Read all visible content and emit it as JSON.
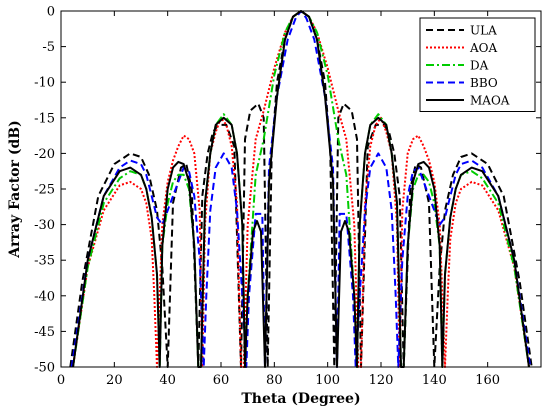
{
  "chart_data": {
    "type": "line",
    "xlabel": "Theta (Degree)",
    "ylabel": "Array Factor (dB)",
    "xlim": [
      0,
      180
    ],
    "ylim": [
      -50,
      0
    ],
    "xticks": [
      0,
      20,
      40,
      60,
      80,
      100,
      120,
      140,
      160
    ],
    "yticks": [
      0,
      -5,
      -10,
      -15,
      -20,
      -25,
      -30,
      -35,
      -40,
      -45,
      -50
    ],
    "grid": false,
    "legend_position": "top-right",
    "series": [
      {
        "name": "ULA",
        "color": "#000000",
        "dash": "7,4",
        "width": 2,
        "x": [
          3.5,
          8,
          14,
          20,
          26,
          30,
          33,
          36,
          38,
          40,
          42,
          45,
          47,
          49,
          51.5,
          53,
          55,
          57,
          59,
          62,
          65,
          67.5,
          69,
          71,
          74,
          76,
          77.5,
          79,
          81,
          84,
          87,
          90,
          93,
          96,
          99,
          101,
          102.5,
          104,
          106,
          109,
          111,
          112.5,
          115,
          118,
          121,
          123,
          125,
          127,
          128.5,
          131,
          133,
          135,
          138,
          140,
          142,
          144,
          147,
          150,
          154,
          160,
          166,
          172,
          176.5
        ],
        "y": [
          -50,
          -38,
          -26,
          -21.5,
          -20,
          -20.5,
          -23,
          -28,
          -36,
          -50,
          -27,
          -22,
          -21.5,
          -25,
          -50,
          -26,
          -20,
          -17,
          -16,
          -16,
          -19,
          -50,
          -18,
          -14,
          -13,
          -15,
          -50,
          -20,
          -10,
          -4,
          -0.8,
          0,
          -0.8,
          -4,
          -10,
          -20,
          -50,
          -15,
          -13,
          -14,
          -18,
          -50,
          -19,
          -16,
          -16,
          -17,
          -20,
          -26,
          -50,
          -25,
          -21.5,
          -22,
          -27,
          -50,
          -36,
          -28,
          -23,
          -20.5,
          -20,
          -21.5,
          -26,
          -38,
          -50
        ]
      },
      {
        "name": "AOA",
        "color": "#ff0000",
        "dash": "2,2",
        "width": 2,
        "x": [
          4.5,
          10,
          16,
          22,
          26,
          30,
          32,
          34,
          35,
          36,
          38,
          40,
          42,
          44,
          46,
          48,
          50,
          52,
          53,
          54,
          56,
          58,
          60,
          62,
          64,
          66,
          67.5,
          68.5,
          70,
          73,
          76,
          80,
          84,
          87,
          90,
          93,
          96,
          100,
          104,
          107,
          110,
          111.5,
          112.5,
          114,
          116,
          118,
          120,
          122,
          124,
          126,
          127,
          128,
          130,
          132,
          134,
          136,
          138,
          140,
          142,
          144,
          145,
          146,
          148,
          150,
          154,
          158,
          164,
          170,
          175.5
        ],
        "y": [
          -50,
          -36,
          -28,
          -24.5,
          -24,
          -25,
          -27,
          -32,
          -40,
          -50,
          -30,
          -24,
          -21,
          -19,
          -17.5,
          -18,
          -20,
          -28,
          -50,
          -30,
          -20,
          -17,
          -15,
          -16,
          -19,
          -27,
          -50,
          -50,
          -30,
          -18,
          -14,
          -8,
          -3,
          -0.8,
          0,
          -0.8,
          -3,
          -8,
          -14,
          -18,
          -30,
          -50,
          -50,
          -27,
          -19,
          -16,
          -15,
          -17,
          -20,
          -30,
          -50,
          -28,
          -20,
          -18,
          -17.5,
          -19,
          -21,
          -24,
          -30,
          -50,
          -40,
          -32,
          -27,
          -25,
          -24,
          -24.5,
          -28,
          -36,
          -50
        ]
      },
      {
        "name": "DA",
        "color": "#00cc00",
        "dash": "8,3,2,3",
        "width": 2,
        "x": [
          4.5,
          10,
          16,
          22,
          26,
          30,
          32,
          34,
          36,
          37,
          38,
          40,
          42,
          44,
          46,
          48,
          50,
          51.5,
          52.5,
          54,
          56,
          58,
          61,
          64,
          66,
          68,
          69,
          70,
          73,
          76,
          80,
          84,
          87,
          90,
          93,
          96,
          100,
          104,
          107,
          110,
          111,
          112,
          114,
          116,
          119,
          122,
          124,
          126,
          127.5,
          128.5,
          130,
          132,
          134,
          136,
          138,
          140,
          142,
          143,
          144,
          146,
          148,
          150,
          154,
          158,
          164,
          170,
          175.5
        ],
        "y": [
          -50,
          -36,
          -27,
          -23.5,
          -22.5,
          -23,
          -25,
          -29,
          -37,
          -50,
          -33,
          -27,
          -24,
          -23,
          -23,
          -25,
          -33,
          -50,
          -50,
          -27,
          -20,
          -16,
          -14.5,
          -16,
          -20,
          -30,
          -50,
          -40,
          -23,
          -18,
          -9,
          -3,
          -0.8,
          0,
          -0.8,
          -3,
          -9,
          -18,
          -23,
          -40,
          -50,
          -30,
          -20,
          -16,
          -14.5,
          -16,
          -20,
          -27,
          -50,
          -50,
          -33,
          -25,
          -23,
          -23,
          -24,
          -27,
          -33,
          -50,
          -37,
          -29,
          -25,
          -23,
          -22.5,
          -23.5,
          -27,
          -36,
          -50
        ]
      },
      {
        "name": "BBO",
        "color": "#0000ff",
        "dash": "7,4",
        "width": 2,
        "x": [
          4,
          10,
          16,
          22,
          26,
          30,
          32,
          34,
          36,
          38,
          40,
          42,
          44,
          46,
          48,
          50,
          52,
          53.5,
          54.5,
          56,
          58,
          61,
          64,
          66,
          68,
          69.5,
          70.5,
          73,
          75.5,
          76.5,
          78,
          81,
          85,
          88,
          90,
          92,
          95,
          99,
          102,
          103.5,
          104.5,
          107,
          109.5,
          110.5,
          112,
          114,
          116,
          119,
          122,
          124,
          125.5,
          126.5,
          128,
          130,
          132,
          134,
          136,
          138,
          140,
          142,
          144,
          146,
          148,
          150,
          154,
          158,
          164,
          170,
          176
        ],
        "y": [
          -50,
          -35,
          -26,
          -22,
          -21,
          -21.5,
          -23,
          -26,
          -29,
          -30,
          -28,
          -26,
          -24,
          -22,
          -22.5,
          -26,
          -35,
          -50,
          -40,
          -28,
          -22,
          -20,
          -22,
          -28,
          -40,
          -50,
          -40,
          -28.5,
          -28.5,
          -50,
          -22,
          -12,
          -4,
          -1,
          0,
          -1,
          -4,
          -12,
          -22,
          -50,
          -28.5,
          -28.5,
          -40,
          -50,
          -40,
          -28,
          -22,
          -20,
          -22,
          -28,
          -40,
          -50,
          -35,
          -26,
          -22.5,
          -22,
          -24,
          -26,
          -28,
          -30,
          -29,
          -26,
          -23,
          -21.5,
          -21,
          -22,
          -26,
          -35,
          -50
        ]
      },
      {
        "name": "MAOA",
        "color": "#000000",
        "dash": "",
        "width": 2,
        "x": [
          4.5,
          10,
          16,
          22,
          26,
          30,
          32,
          34,
          36,
          37,
          38,
          40,
          42,
          44,
          46,
          48,
          50,
          51.5,
          52.5,
          54,
          56,
          58,
          61,
          64,
          66,
          68,
          69,
          70,
          72,
          73.5,
          75,
          76.5,
          78,
          81,
          84,
          87,
          90,
          93,
          96,
          99,
          102,
          103.5,
          105,
          106.5,
          108,
          110,
          111,
          112,
          114,
          116,
          119,
          122,
          124,
          126,
          127.5,
          128.5,
          130,
          132,
          134,
          136,
          138,
          140,
          142,
          143,
          144,
          146,
          148,
          150,
          154,
          158,
          164,
          170,
          175.5
        ],
        "y": [
          -50,
          -35,
          -26,
          -22.5,
          -22,
          -23,
          -25,
          -29,
          -37,
          -50,
          -33,
          -25,
          -22,
          -21.2,
          -21.5,
          -24,
          -33,
          -50,
          -50,
          -27,
          -20,
          -16,
          -15,
          -16,
          -20,
          -30,
          -50,
          -40,
          -31,
          -29.5,
          -31,
          -50,
          -24,
          -12,
          -4,
          -0.8,
          0,
          -0.8,
          -4,
          -12,
          -24,
          -50,
          -31,
          -29.5,
          -31,
          -40,
          -50,
          -30,
          -20,
          -16,
          -15,
          -16,
          -20,
          -27,
          -50,
          -50,
          -33,
          -24,
          -21.5,
          -21.2,
          -22,
          -25,
          -33,
          -50,
          -37,
          -29,
          -25,
          -23,
          -22,
          -22.5,
          -26,
          -35,
          -50
        ]
      }
    ]
  }
}
